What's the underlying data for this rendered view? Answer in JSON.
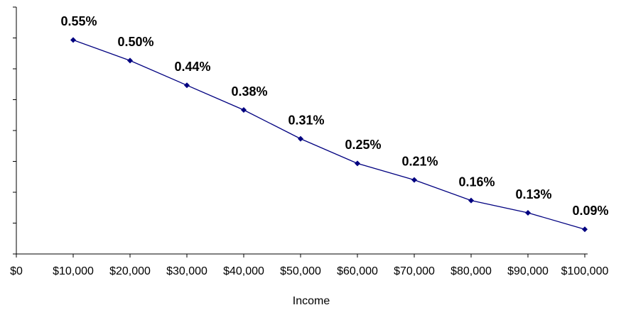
{
  "chart_data": {
    "type": "line",
    "x_label": "Income",
    "x": [
      10000,
      20000,
      30000,
      40000,
      50000,
      60000,
      70000,
      80000,
      90000,
      100000
    ],
    "series": [
      {
        "color": "#000080",
        "values": [
          0.55,
          0.5,
          0.44,
          0.38,
          0.31,
          0.25,
          0.21,
          0.16,
          0.13,
          0.09
        ],
        "value_labels": [
          "0.55%",
          "0.50%",
          "0.44%",
          "0.38%",
          "0.31%",
          "0.25%",
          "0.21%",
          "0.16%",
          "0.13%",
          "0.09%"
        ]
      }
    ],
    "xlim": [
      0,
      100000
    ],
    "xticks": [
      {
        "value": 0,
        "label": "$0"
      },
      {
        "value": 10000,
        "label": "$10,000"
      },
      {
        "value": 20000,
        "label": "$20,000"
      },
      {
        "value": 30000,
        "label": "$30,000"
      },
      {
        "value": 40000,
        "label": "$40,000"
      },
      {
        "value": 50000,
        "label": "$50,000"
      },
      {
        "value": 60000,
        "label": "$60,000"
      },
      {
        "value": 70000,
        "label": "$70,000"
      },
      {
        "value": 80000,
        "label": "$80,000"
      },
      {
        "value": 90000,
        "label": "$90,000"
      },
      {
        "value": 100000,
        "label": "$100,000"
      }
    ],
    "ylim": [
      0.03,
      0.63
    ],
    "yticks": [
      0.03,
      0.105,
      0.18,
      0.255,
      0.33,
      0.405,
      0.48,
      0.555,
      0.63
    ]
  }
}
